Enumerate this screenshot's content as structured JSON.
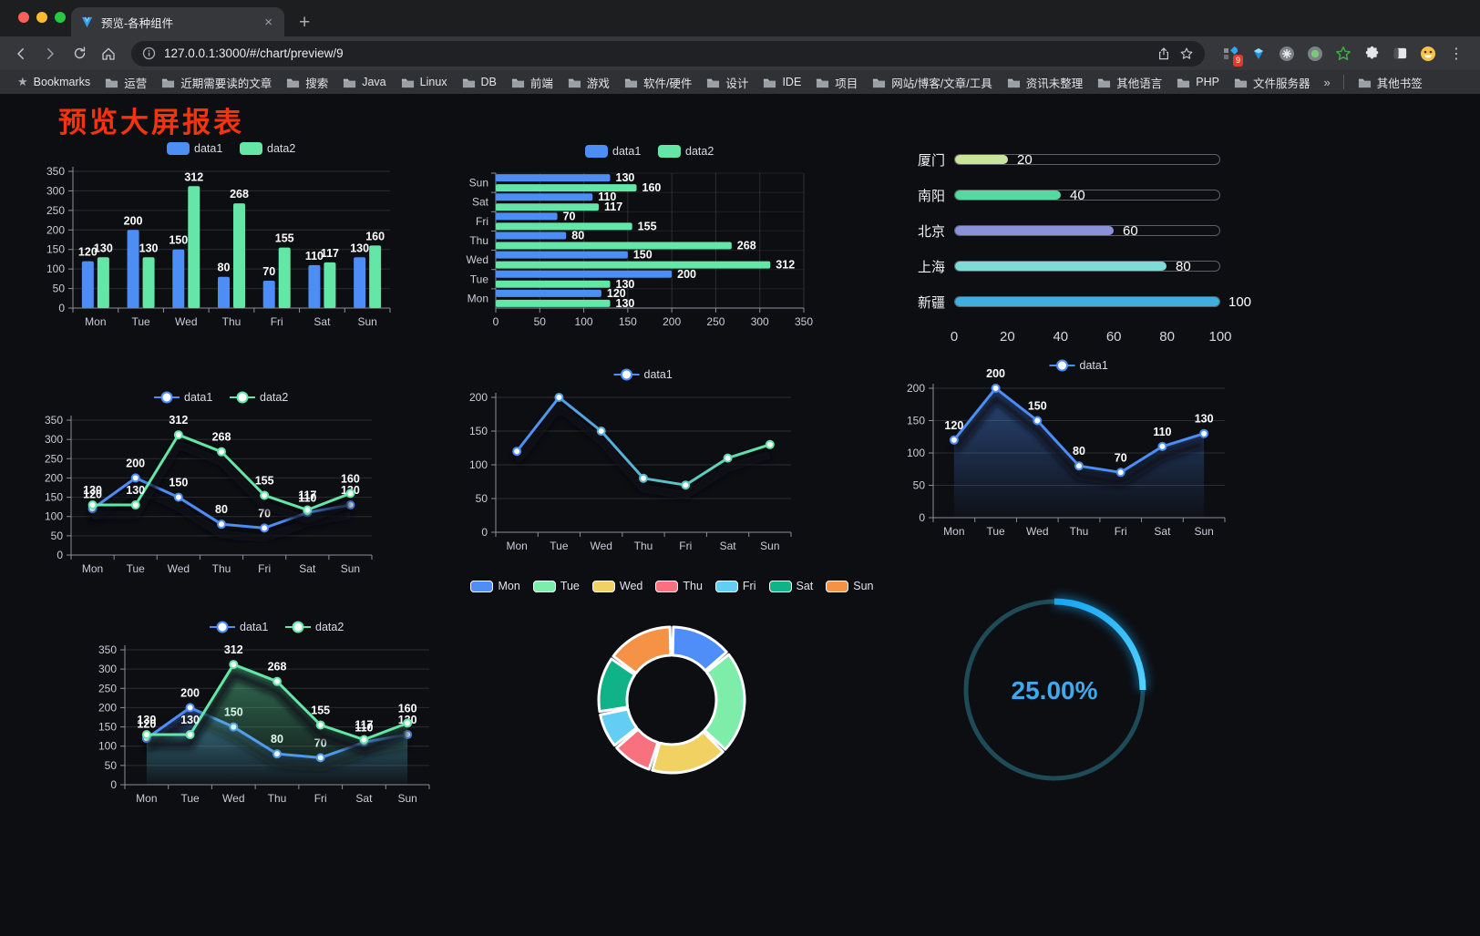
{
  "browser": {
    "tab_title": "预览-各种组件",
    "url": "127.0.0.1:3000/#/chart/preview/9",
    "icons": {
      "close_tab": "×",
      "new_tab": "+",
      "menu_dots": "⋮",
      "overflow_chevron": "»",
      "bookmarks_star": "★",
      "url_star": "☆",
      "extension_badge": "9"
    },
    "bookmarks_label": "Bookmarks",
    "bookmarks": [
      "运营",
      "近期需要读的文章",
      "搜索",
      "Java",
      "Linux",
      "DB",
      "前端",
      "游戏",
      "软件/硬件",
      "设计",
      "IDE",
      "项目",
      "网站/博客/文章/工具",
      "资讯未整理",
      "其他语言",
      "PHP",
      "文件服务器"
    ],
    "other_bookmarks": "其他书签"
  },
  "page": {
    "title": "预览大屏报表",
    "title_color": "#f5330d",
    "background": "#0d0e12"
  },
  "palette": {
    "data1": "#4C8DF6",
    "data2": "#63E6A6",
    "axis_label": "#c9cdd6",
    "value_label": "#ffffff"
  },
  "chart_data": [
    {
      "id": "bar-vertical",
      "type": "bar",
      "categories": [
        "Mon",
        "Tue",
        "Wed",
        "Thu",
        "Fri",
        "Sat",
        "Sun"
      ],
      "series": [
        {
          "name": "data1",
          "color": "#4C8DF6",
          "values": [
            120,
            200,
            150,
            80,
            70,
            110,
            130
          ]
        },
        {
          "name": "data2",
          "color": "#63E6A6",
          "values": [
            130,
            130,
            312,
            268,
            155,
            117,
            160
          ]
        }
      ],
      "ylim": [
        0,
        350
      ],
      "ystep": 50,
      "legend_position": "top",
      "grid": true
    },
    {
      "id": "bar-horizontal",
      "type": "bar",
      "orientation": "horizontal",
      "categories": [
        "Mon",
        "Tue",
        "Wed",
        "Thu",
        "Fri",
        "Sat",
        "Sun"
      ],
      "series": [
        {
          "name": "data1",
          "color": "#4C8DF6",
          "values": [
            120,
            200,
            150,
            80,
            70,
            110,
            130
          ]
        },
        {
          "name": "data2",
          "color": "#63E6A6",
          "values": [
            130,
            130,
            312,
            268,
            155,
            117,
            160
          ]
        }
      ],
      "xlim": [
        0,
        350
      ],
      "xstep": 50,
      "legend_position": "top",
      "grid": true
    },
    {
      "id": "city-progress",
      "type": "bar",
      "style": "progress",
      "categories": [
        "厦门",
        "南阳",
        "北京",
        "上海",
        "新疆"
      ],
      "values": [
        20,
        40,
        60,
        80,
        100
      ],
      "colors": [
        "#C9E59B",
        "#56D8A1",
        "#8B92D9",
        "#7EDBD8",
        "#3FAFDF"
      ],
      "xlim": [
        0,
        100
      ],
      "xticks": [
        0,
        20,
        40,
        60,
        80,
        100
      ]
    },
    {
      "id": "line-dual",
      "type": "line",
      "categories": [
        "Mon",
        "Tue",
        "Wed",
        "Thu",
        "Fri",
        "Sat",
        "Sun"
      ],
      "series": [
        {
          "name": "data1",
          "color": "#4C8DF6",
          "values": [
            120,
            200,
            150,
            80,
            70,
            110,
            130
          ]
        },
        {
          "name": "data2",
          "color": "#63E6A6",
          "values": [
            130,
            130,
            312,
            268,
            155,
            117,
            160
          ]
        }
      ],
      "ylim": [
        0,
        350
      ],
      "ystep": 50,
      "labels": true,
      "legend_position": "top"
    },
    {
      "id": "line-gradient",
      "type": "line",
      "categories": [
        "Mon",
        "Tue",
        "Wed",
        "Thu",
        "Fri",
        "Sat",
        "Sun"
      ],
      "series": [
        {
          "name": "data1",
          "color": "#4C8DF6",
          "values": [
            120,
            200,
            150,
            80,
            70,
            110,
            130
          ]
        }
      ],
      "ylim": [
        0,
        200
      ],
      "ystep": 50,
      "labels": false,
      "line_gradient": [
        "#4C8DF6",
        "#63E6A6"
      ],
      "shadow": true,
      "legend_position": "top"
    },
    {
      "id": "area-single",
      "type": "area",
      "categories": [
        "Mon",
        "Tue",
        "Wed",
        "Thu",
        "Fri",
        "Sat",
        "Sun"
      ],
      "series": [
        {
          "name": "data1",
          "color": "#4C8DF6",
          "values": [
            120,
            200,
            150,
            80,
            70,
            110,
            130
          ]
        }
      ],
      "ylim": [
        0,
        200
      ],
      "ystep": 50,
      "labels": true,
      "legend_position": "top"
    },
    {
      "id": "area-dual",
      "type": "area",
      "categories": [
        "Mon",
        "Tue",
        "Wed",
        "Thu",
        "Fri",
        "Sat",
        "Sun"
      ],
      "series": [
        {
          "name": "data1",
          "color": "#4C8DF6",
          "values": [
            120,
            200,
            150,
            80,
            70,
            110,
            130
          ]
        },
        {
          "name": "data2",
          "color": "#63E6A6",
          "values": [
            130,
            130,
            312,
            268,
            155,
            117,
            160
          ]
        }
      ],
      "ylim": [
        0,
        350
      ],
      "ystep": 50,
      "labels": true,
      "legend_position": "top"
    },
    {
      "id": "week-donut",
      "type": "pie",
      "categories": [
        "Mon",
        "Tue",
        "Wed",
        "Thu",
        "Fri",
        "Sat",
        "Sun"
      ],
      "values": [
        120,
        200,
        150,
        80,
        70,
        110,
        130
      ],
      "colors": [
        "#4F8DF8",
        "#7DEDA9",
        "#F2D163",
        "#F9707F",
        "#63CDF3",
        "#10B287",
        "#F69246"
      ],
      "inner_radius_ratio": 0.61,
      "border_color": "#ffffff",
      "legend_position": "top"
    },
    {
      "id": "percent-gauge",
      "type": "gauge",
      "value": 25,
      "max": 100,
      "label": "25.00%",
      "arc_color": "#15A5F2",
      "arc_color_end": "#55D2FF",
      "track_color": "#1D4B58",
      "text_color": "#3EA9EF"
    }
  ]
}
